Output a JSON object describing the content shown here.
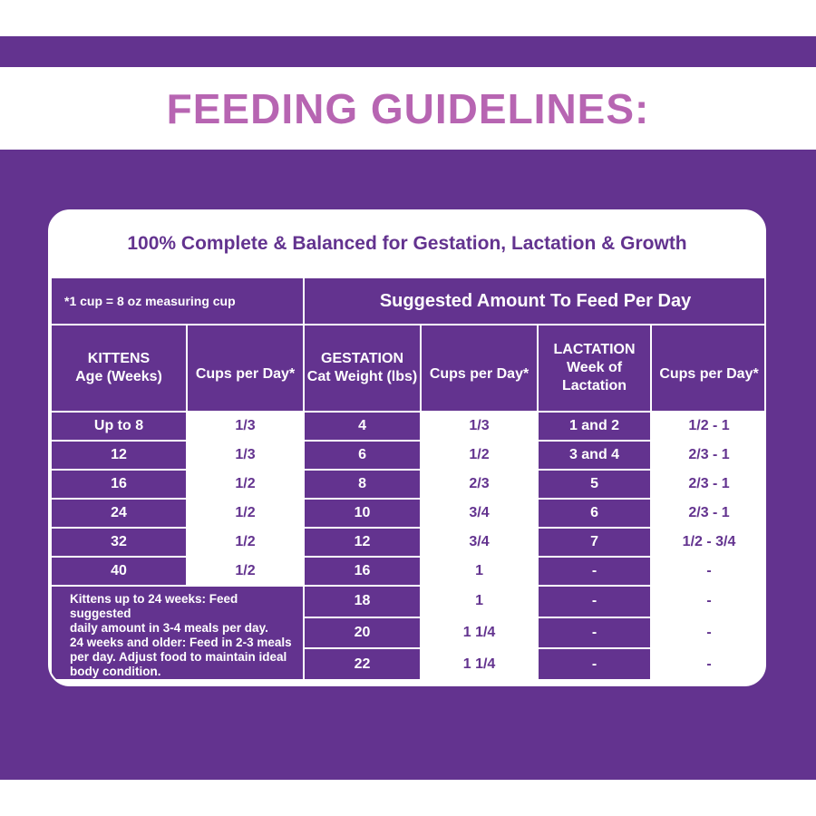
{
  "title": "FEEDING GUIDELINES:",
  "card_header": "100% Complete & Balanced for Gestation, Lactation & Growth",
  "measure_note": "*1 cup = 8 oz measuring cup",
  "suggested_title": "Suggested Amount To Feed Per Day",
  "columns": {
    "kittens_line1": "KITTENS",
    "kittens_line2": "Age (Weeks)",
    "kittens_cups": "Cups per Day*",
    "gestation_line1": "GESTATION",
    "gestation_line2": "Cat Weight (lbs)",
    "gestation_cups": "Cups per Day*",
    "lactation_line1": "LACTATION",
    "lactation_line2": "Week of Lactation",
    "lactation_cups": "Cups per Day*"
  },
  "rows": [
    {
      "kit_age": "Up to 8",
      "kit_cups": "1/3",
      "ges_weight": "4",
      "ges_cups": "1/3",
      "lac_week": "1 and 2",
      "lac_cups": "1/2 - 1"
    },
    {
      "kit_age": "12",
      "kit_cups": "1/3",
      "ges_weight": "6",
      "ges_cups": "1/2",
      "lac_week": "3 and 4",
      "lac_cups": "2/3 - 1"
    },
    {
      "kit_age": "16",
      "kit_cups": "1/2",
      "ges_weight": "8",
      "ges_cups": "2/3",
      "lac_week": "5",
      "lac_cups": "2/3 - 1"
    },
    {
      "kit_age": "24",
      "kit_cups": "1/2",
      "ges_weight": "10",
      "ges_cups": "3/4",
      "lac_week": "6",
      "lac_cups": "2/3 - 1"
    },
    {
      "kit_age": "32",
      "kit_cups": "1/2",
      "ges_weight": "12",
      "ges_cups": "3/4",
      "lac_week": "7",
      "lac_cups": "1/2 - 3/4"
    },
    {
      "kit_age": "40",
      "kit_cups": "1/2",
      "ges_weight": "16",
      "ges_cups": "1",
      "lac_week": "-",
      "lac_cups": "-"
    },
    {
      "ges_weight": "18",
      "ges_cups": "1",
      "lac_week": "-",
      "lac_cups": "-"
    },
    {
      "ges_weight": "20",
      "ges_cups": "1 1/4",
      "lac_week": "-",
      "lac_cups": "-"
    },
    {
      "ges_weight": "22",
      "ges_cups": "1 1/4",
      "lac_week": "-",
      "lac_cups": "-"
    }
  ],
  "kitten_note": [
    "Kittens up to 24 weeks: Feed suggested",
    "daily amount in 3-4 meals per day.",
    "24 weeks and older: Feed in 2-3 meals",
    "per day. Adjust food to maintain ideal",
    "body condition."
  ],
  "colors": {
    "brand_purple": "#63338f",
    "title_pink": "#b765b2",
    "white": "#ffffff"
  }
}
